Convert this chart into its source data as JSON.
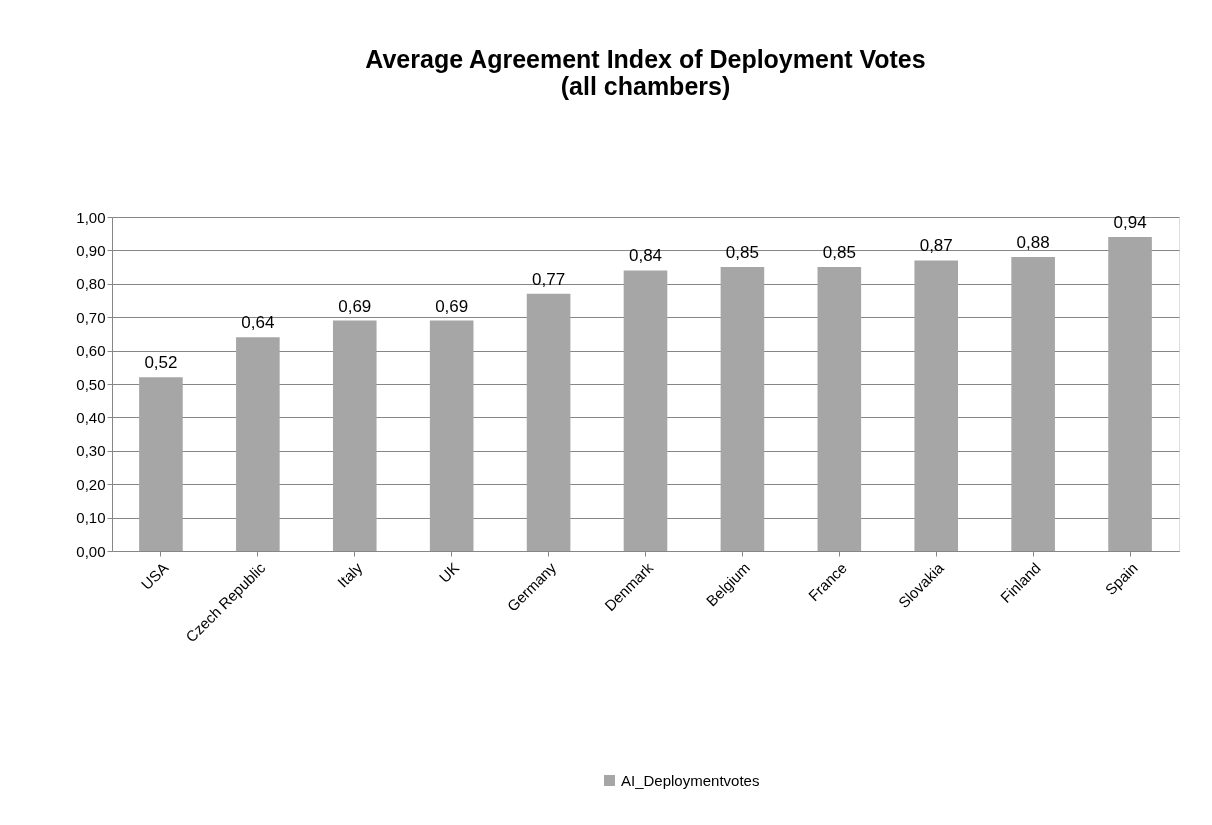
{
  "chart_data": {
    "type": "bar",
    "title": "Average Agreement Index of Deployment Votes\n(all chambers)",
    "categories": [
      "USA",
      "Czech Republic",
      "Italy",
      "UK",
      "Germany",
      "Denmark",
      "Belgium",
      "France",
      "Slovakia",
      "Finland",
      "Spain"
    ],
    "series": [
      {
        "name": "AI_Deploymentvotes",
        "color": "#a6a6a6",
        "values": [
          0.52,
          0.64,
          0.69,
          0.69,
          0.77,
          0.84,
          0.85,
          0.85,
          0.87,
          0.88,
          0.94
        ],
        "value_labels": [
          "0,52",
          "0,64",
          "0,69",
          "0,69",
          "0,77",
          "0,84",
          "0,85",
          "0,85",
          "0,87",
          "0,88",
          "0,94"
        ]
      }
    ],
    "ylim": [
      0,
      1
    ],
    "yticks": [
      {
        "value": 0,
        "label": "0,00"
      },
      {
        "value": 0.1,
        "label": "0,10"
      },
      {
        "value": 0.2,
        "label": "0,20"
      },
      {
        "value": 0.3,
        "label": "0,30"
      },
      {
        "value": 0.4,
        "label": "0,40"
      },
      {
        "value": 0.5,
        "label": "0,50"
      },
      {
        "value": 0.6,
        "label": "0,60"
      },
      {
        "value": 0.7,
        "label": "0,70"
      },
      {
        "value": 0.8,
        "label": "0,80"
      },
      {
        "value": 0.9,
        "label": "0,90"
      },
      {
        "value": 1,
        "label": "1,00"
      }
    ],
    "grid": "y",
    "legend": "bottom"
  }
}
